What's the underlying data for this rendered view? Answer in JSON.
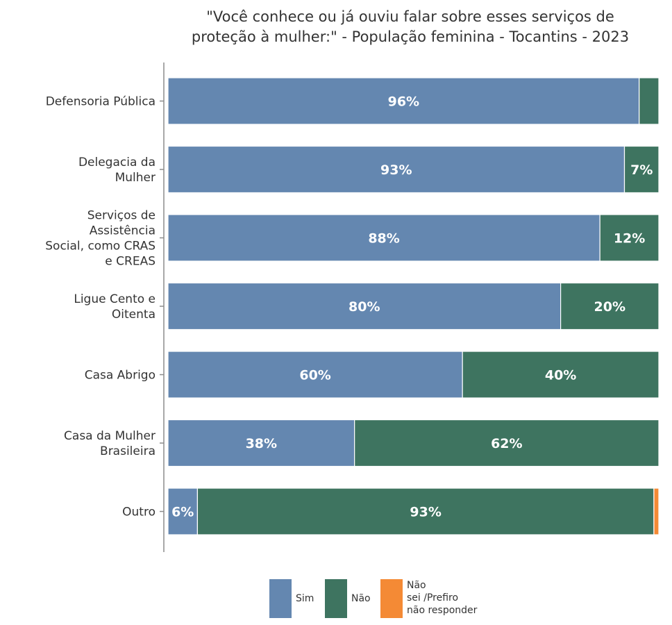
{
  "chart_data": {
    "type": "bar",
    "orientation": "horizontal",
    "stacked": true,
    "title_lines": [
      "\"Você conhece ou já ouviu falar sobre esses serviços de",
      "proteção à mulher:\" - População feminina - Tocantins - 2023"
    ],
    "categories": [
      [
        "Defensoria Pública"
      ],
      [
        "Delegacia da",
        "Mulher"
      ],
      [
        "Serviços de",
        "Assistência",
        "Social, como CRAS",
        "e CREAS"
      ],
      [
        "Ligue Cento e",
        "Oitenta"
      ],
      [
        "Casa Abrigo"
      ],
      [
        "Casa da Mulher",
        "Brasileira"
      ],
      [
        "Outro"
      ]
    ],
    "series": [
      {
        "name": "Sim",
        "color": "#6487b0",
        "values": [
          96,
          93,
          88,
          80,
          60,
          38,
          6
        ],
        "labels": [
          "96%",
          "93%",
          "88%",
          "80%",
          "60%",
          "38%",
          "6%"
        ]
      },
      {
        "name": "Não",
        "color": "#3e7460",
        "values": [
          4,
          7,
          12,
          20,
          40,
          62,
          93
        ],
        "labels": [
          "",
          "7%",
          "12%",
          "20%",
          "40%",
          "62%",
          "93%"
        ]
      },
      {
        "name": "Não sei /Prefiro não responder",
        "color": "#f48a35",
        "values": [
          0,
          0,
          0,
          0,
          0,
          0,
          1
        ],
        "labels": [
          "",
          "",
          "",
          "",
          "",
          "",
          ""
        ]
      }
    ],
    "xlim": [
      0,
      100
    ],
    "legend_position": "bottom",
    "grid": false
  },
  "legend": {
    "items": [
      {
        "lines": [
          "Sim"
        ],
        "color": "#6487b0"
      },
      {
        "lines": [
          "Não"
        ],
        "color": "#3e7460"
      },
      {
        "lines": [
          "Não",
          "sei /Prefiro",
          "não responder"
        ],
        "color": "#f48a35"
      }
    ]
  }
}
